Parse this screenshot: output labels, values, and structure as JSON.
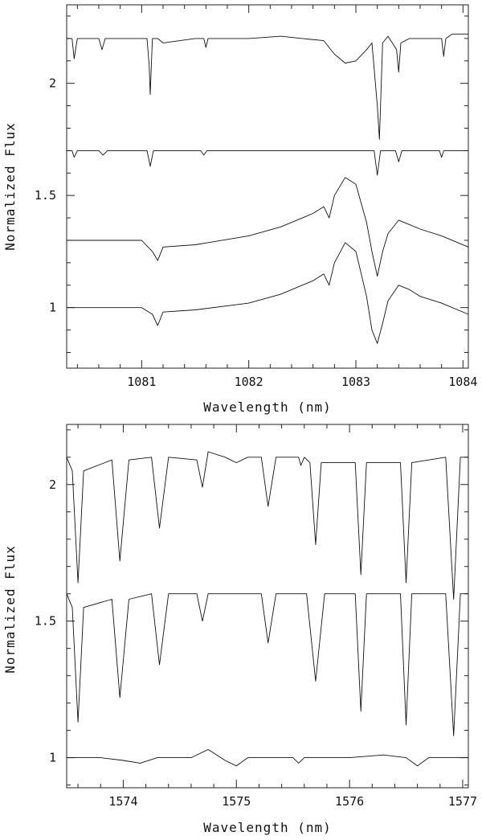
{
  "chart_data": [
    {
      "type": "line",
      "xlabel": "Wavelength (nm)",
      "ylabel": "Normalized Flux",
      "xlim": [
        1080.3,
        1084.05
      ],
      "ylim": [
        0.73,
        2.35
      ],
      "xticks": [
        1081,
        1082,
        1083,
        1084
      ],
      "xtick_labels": [
        "1081",
        "1082",
        "1083",
        "1084"
      ],
      "yticks": [
        1,
        1.5,
        2
      ],
      "ytick_labels": [
        "1",
        "1.5",
        "2"
      ],
      "grid": false,
      "series": [
        {
          "x": [
            1080.3,
            1080.35,
            1080.37,
            1080.4,
            1080.6,
            1080.63,
            1080.66,
            1080.9,
            1081.05,
            1081.07,
            1081.08,
            1081.1,
            1081.15,
            1081.2,
            1081.5,
            1081.58,
            1081.6,
            1081.62,
            1082.0,
            1082.3,
            1082.5,
            1082.7,
            1082.8,
            1082.9,
            1083.0,
            1083.1,
            1083.15,
            1083.2,
            1083.22,
            1083.25,
            1083.3,
            1083.38,
            1083.4,
            1083.42,
            1083.5,
            1083.8,
            1083.82,
            1083.84,
            1083.9,
            1084.05
          ],
          "y": [
            2.2,
            2.2,
            2.11,
            2.2,
            2.2,
            2.15,
            2.2,
            2.2,
            2.2,
            2.08,
            1.95,
            2.2,
            2.2,
            2.18,
            2.2,
            2.2,
            2.16,
            2.2,
            2.2,
            2.21,
            2.2,
            2.19,
            2.13,
            2.09,
            2.1,
            2.15,
            2.18,
            1.9,
            1.75,
            2.18,
            2.21,
            2.15,
            2.05,
            2.18,
            2.2,
            2.2,
            2.12,
            2.2,
            2.22,
            2.22
          ]
        },
        {
          "x": [
            1080.3,
            1080.35,
            1080.37,
            1080.4,
            1080.6,
            1080.64,
            1080.68,
            1081.05,
            1081.08,
            1081.11,
            1081.55,
            1081.58,
            1081.61,
            1083.17,
            1083.2,
            1083.23,
            1083.37,
            1083.4,
            1083.43,
            1083.78,
            1083.8,
            1083.82,
            1084.05
          ],
          "y": [
            1.7,
            1.7,
            1.67,
            1.7,
            1.7,
            1.68,
            1.7,
            1.7,
            1.63,
            1.7,
            1.7,
            1.68,
            1.7,
            1.7,
            1.59,
            1.7,
            1.7,
            1.65,
            1.7,
            1.7,
            1.67,
            1.7,
            1.7
          ]
        },
        {
          "x": [
            1080.3,
            1080.6,
            1081.0,
            1081.1,
            1081.15,
            1081.2,
            1081.5,
            1082.0,
            1082.3,
            1082.6,
            1082.7,
            1082.75,
            1082.8,
            1082.9,
            1083.0,
            1083.1,
            1083.15,
            1083.2,
            1083.25,
            1083.3,
            1083.4,
            1083.5,
            1083.6,
            1083.8,
            1084.05
          ],
          "y": [
            1.3,
            1.3,
            1.3,
            1.25,
            1.21,
            1.27,
            1.28,
            1.32,
            1.36,
            1.42,
            1.45,
            1.4,
            1.5,
            1.58,
            1.55,
            1.38,
            1.25,
            1.14,
            1.25,
            1.33,
            1.39,
            1.37,
            1.35,
            1.32,
            1.27
          ]
        },
        {
          "x": [
            1080.3,
            1080.6,
            1081.0,
            1081.1,
            1081.15,
            1081.2,
            1081.5,
            1082.0,
            1082.3,
            1082.6,
            1082.7,
            1082.75,
            1082.8,
            1082.9,
            1083.0,
            1083.1,
            1083.15,
            1083.2,
            1083.25,
            1083.3,
            1083.4,
            1083.5,
            1083.6,
            1083.8,
            1084.05
          ],
          "y": [
            1.0,
            1.0,
            1.0,
            0.97,
            0.92,
            0.98,
            0.99,
            1.02,
            1.06,
            1.12,
            1.15,
            1.1,
            1.2,
            1.29,
            1.25,
            1.05,
            0.9,
            0.84,
            0.93,
            1.03,
            1.1,
            1.08,
            1.05,
            1.02,
            0.97
          ]
        }
      ]
    },
    {
      "type": "line",
      "xlabel": "Wavelength (nm)",
      "ylabel": "Normalized Flux",
      "xlim": [
        1573.5,
        1577.05
      ],
      "ylim": [
        0.89,
        2.22
      ],
      "xticks": [
        1574,
        1575,
        1576,
        1577
      ],
      "xtick_labels": [
        "1574",
        "1575",
        "1576",
        "1577"
      ],
      "yticks": [
        1,
        1.5,
        2
      ],
      "ytick_labels": [
        "1",
        "1.5",
        "2"
      ],
      "grid": false,
      "series": [
        {
          "x": [
            1573.5,
            1573.55,
            1573.6,
            1573.65,
            1573.9,
            1573.97,
            1574.05,
            1574.25,
            1574.32,
            1574.4,
            1574.65,
            1574.7,
            1574.75,
            1574.9,
            1575.0,
            1575.1,
            1575.22,
            1575.28,
            1575.35,
            1575.55,
            1575.57,
            1575.6,
            1575.65,
            1575.7,
            1575.75,
            1576.05,
            1576.1,
            1576.15,
            1576.3,
            1576.45,
            1576.5,
            1576.55,
            1576.85,
            1576.92,
            1576.98,
            1577.05
          ],
          "y": [
            2.1,
            2.05,
            1.64,
            2.05,
            2.09,
            1.72,
            2.09,
            2.1,
            1.84,
            2.1,
            2.09,
            1.99,
            2.12,
            2.1,
            2.08,
            2.1,
            2.1,
            1.92,
            2.1,
            2.1,
            2.07,
            2.1,
            2.08,
            1.78,
            2.08,
            2.08,
            1.67,
            2.08,
            2.08,
            2.08,
            1.64,
            2.08,
            2.1,
            1.58,
            2.1,
            2.1
          ]
        },
        {
          "x": [
            1573.5,
            1573.55,
            1573.6,
            1573.65,
            1573.9,
            1573.97,
            1574.05,
            1574.25,
            1574.32,
            1574.4,
            1574.65,
            1574.7,
            1574.75,
            1575.22,
            1575.28,
            1575.35,
            1575.62,
            1575.7,
            1575.78,
            1576.05,
            1576.1,
            1576.15,
            1576.45,
            1576.5,
            1576.55,
            1576.85,
            1576.92,
            1576.98,
            1577.05
          ],
          "y": [
            1.6,
            1.55,
            1.13,
            1.55,
            1.58,
            1.22,
            1.58,
            1.6,
            1.34,
            1.6,
            1.6,
            1.5,
            1.6,
            1.6,
            1.42,
            1.6,
            1.6,
            1.28,
            1.6,
            1.6,
            1.17,
            1.6,
            1.6,
            1.12,
            1.6,
            1.6,
            1.08,
            1.6,
            1.6
          ]
        },
        {
          "x": [
            1573.5,
            1573.8,
            1574.0,
            1574.15,
            1574.3,
            1574.6,
            1574.75,
            1574.9,
            1575.0,
            1575.1,
            1575.5,
            1575.55,
            1575.6,
            1576.0,
            1576.3,
            1576.5,
            1576.6,
            1576.7,
            1577.05
          ],
          "y": [
            1.0,
            1.0,
            0.99,
            0.98,
            1.0,
            1.0,
            1.03,
            0.99,
            0.97,
            1.0,
            1.0,
            0.98,
            1.0,
            1.0,
            1.01,
            1.0,
            0.97,
            1.0,
            1.0
          ]
        }
      ]
    }
  ]
}
